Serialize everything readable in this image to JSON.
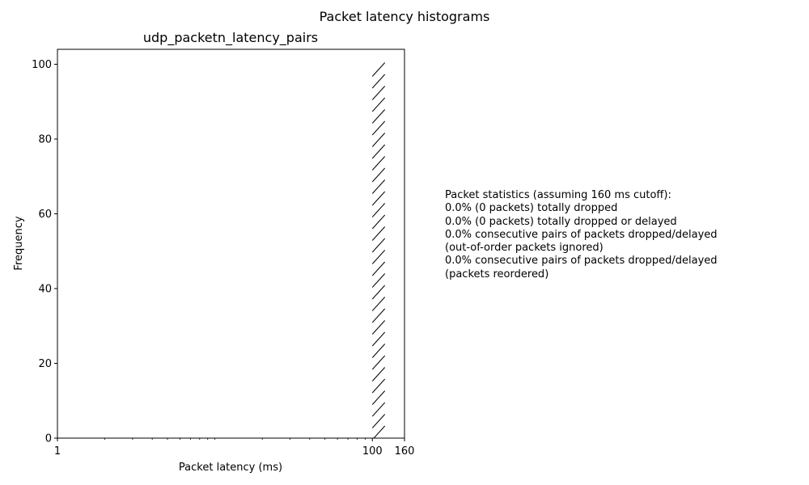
{
  "figure_title": "Packet latency histograms",
  "chart_data": {
    "type": "bar",
    "title": "udp_packetn_latency_pairs",
    "xlabel": "Packet latency (ms)",
    "ylabel": "Frequency",
    "xscale": "log",
    "xlim": [
      1,
      160
    ],
    "ylim": [
      0,
      104
    ],
    "xticks": [
      1,
      100,
      160
    ],
    "xtick_labels": [
      "1",
      "100",
      "160"
    ],
    "yticks": [
      0,
      20,
      40,
      60,
      80,
      100
    ],
    "ytick_labels": [
      "0",
      "20",
      "40",
      "60",
      "80",
      "100"
    ],
    "grid": false,
    "bins": [
      {
        "x_start": 100,
        "x_end": 120,
        "value": 100,
        "fill": "none",
        "hatch": "/"
      }
    ]
  },
  "stats": {
    "lines": [
      "Packet statistics (assuming 160 ms cutoff):",
      "0.0% (0 packets) totally dropped",
      "0.0% (0 packets) totally dropped or delayed",
      "0.0% consecutive pairs of packets dropped/delayed",
      "(out-of-order packets ignored)",
      "0.0% consecutive pairs of packets dropped/delayed",
      "(packets reordered)"
    ]
  }
}
